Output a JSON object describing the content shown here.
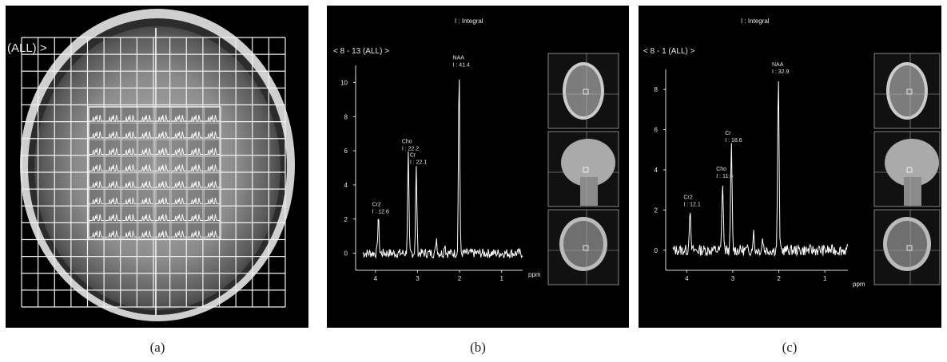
{
  "captions": [
    "(a)",
    "(b)",
    "(c)"
  ],
  "panel_a": {
    "label": "(ALL) >"
  },
  "chart_data": [
    {
      "type": "line",
      "header": "I : Integral",
      "title": "< 8 - 13 (ALL) >",
      "xlabel": "ppm",
      "ylabel": "",
      "x_ticks": [
        4,
        3,
        2,
        1
      ],
      "y_ticks": [
        0,
        2,
        4,
        6,
        8,
        10
      ],
      "xlim": [
        4.3,
        0.5
      ],
      "ylim": [
        -1,
        11
      ],
      "peaks": [
        {
          "name": "Cr2",
          "label": "I : 12.6",
          "ppm": 3.93,
          "height": 2.1
        },
        {
          "name": "Cho",
          "label": "I : 22.2",
          "ppm": 3.22,
          "height": 5.8
        },
        {
          "name": "Cr",
          "label": "I : 22.1",
          "ppm": 3.03,
          "height": 5.0
        },
        {
          "name": "NAA",
          "label": "I : 41.4",
          "ppm": 2.01,
          "height": 10.7
        }
      ]
    },
    {
      "type": "line",
      "header": "I : Integral",
      "title": "< 8 - 1 (ALL) >",
      "xlabel": "ppm",
      "ylabel": "",
      "x_ticks": [
        4,
        3,
        2,
        1
      ],
      "y_ticks": [
        0,
        2,
        4,
        6,
        8
      ],
      "xlim": [
        4.3,
        0.5
      ],
      "ylim": [
        -1,
        9
      ],
      "peaks": [
        {
          "name": "Cr2",
          "label": "I : 12.1",
          "ppm": 3.93,
          "height": 2.0
        },
        {
          "name": "Cho",
          "label": "I : 11.6",
          "ppm": 3.22,
          "height": 3.4
        },
        {
          "name": "Cr",
          "label": "I : 18.6",
          "ppm": 3.03,
          "height": 5.2
        },
        {
          "name": "NAA",
          "label": "I : 32.9",
          "ppm": 2.01,
          "height": 8.6
        }
      ]
    }
  ]
}
